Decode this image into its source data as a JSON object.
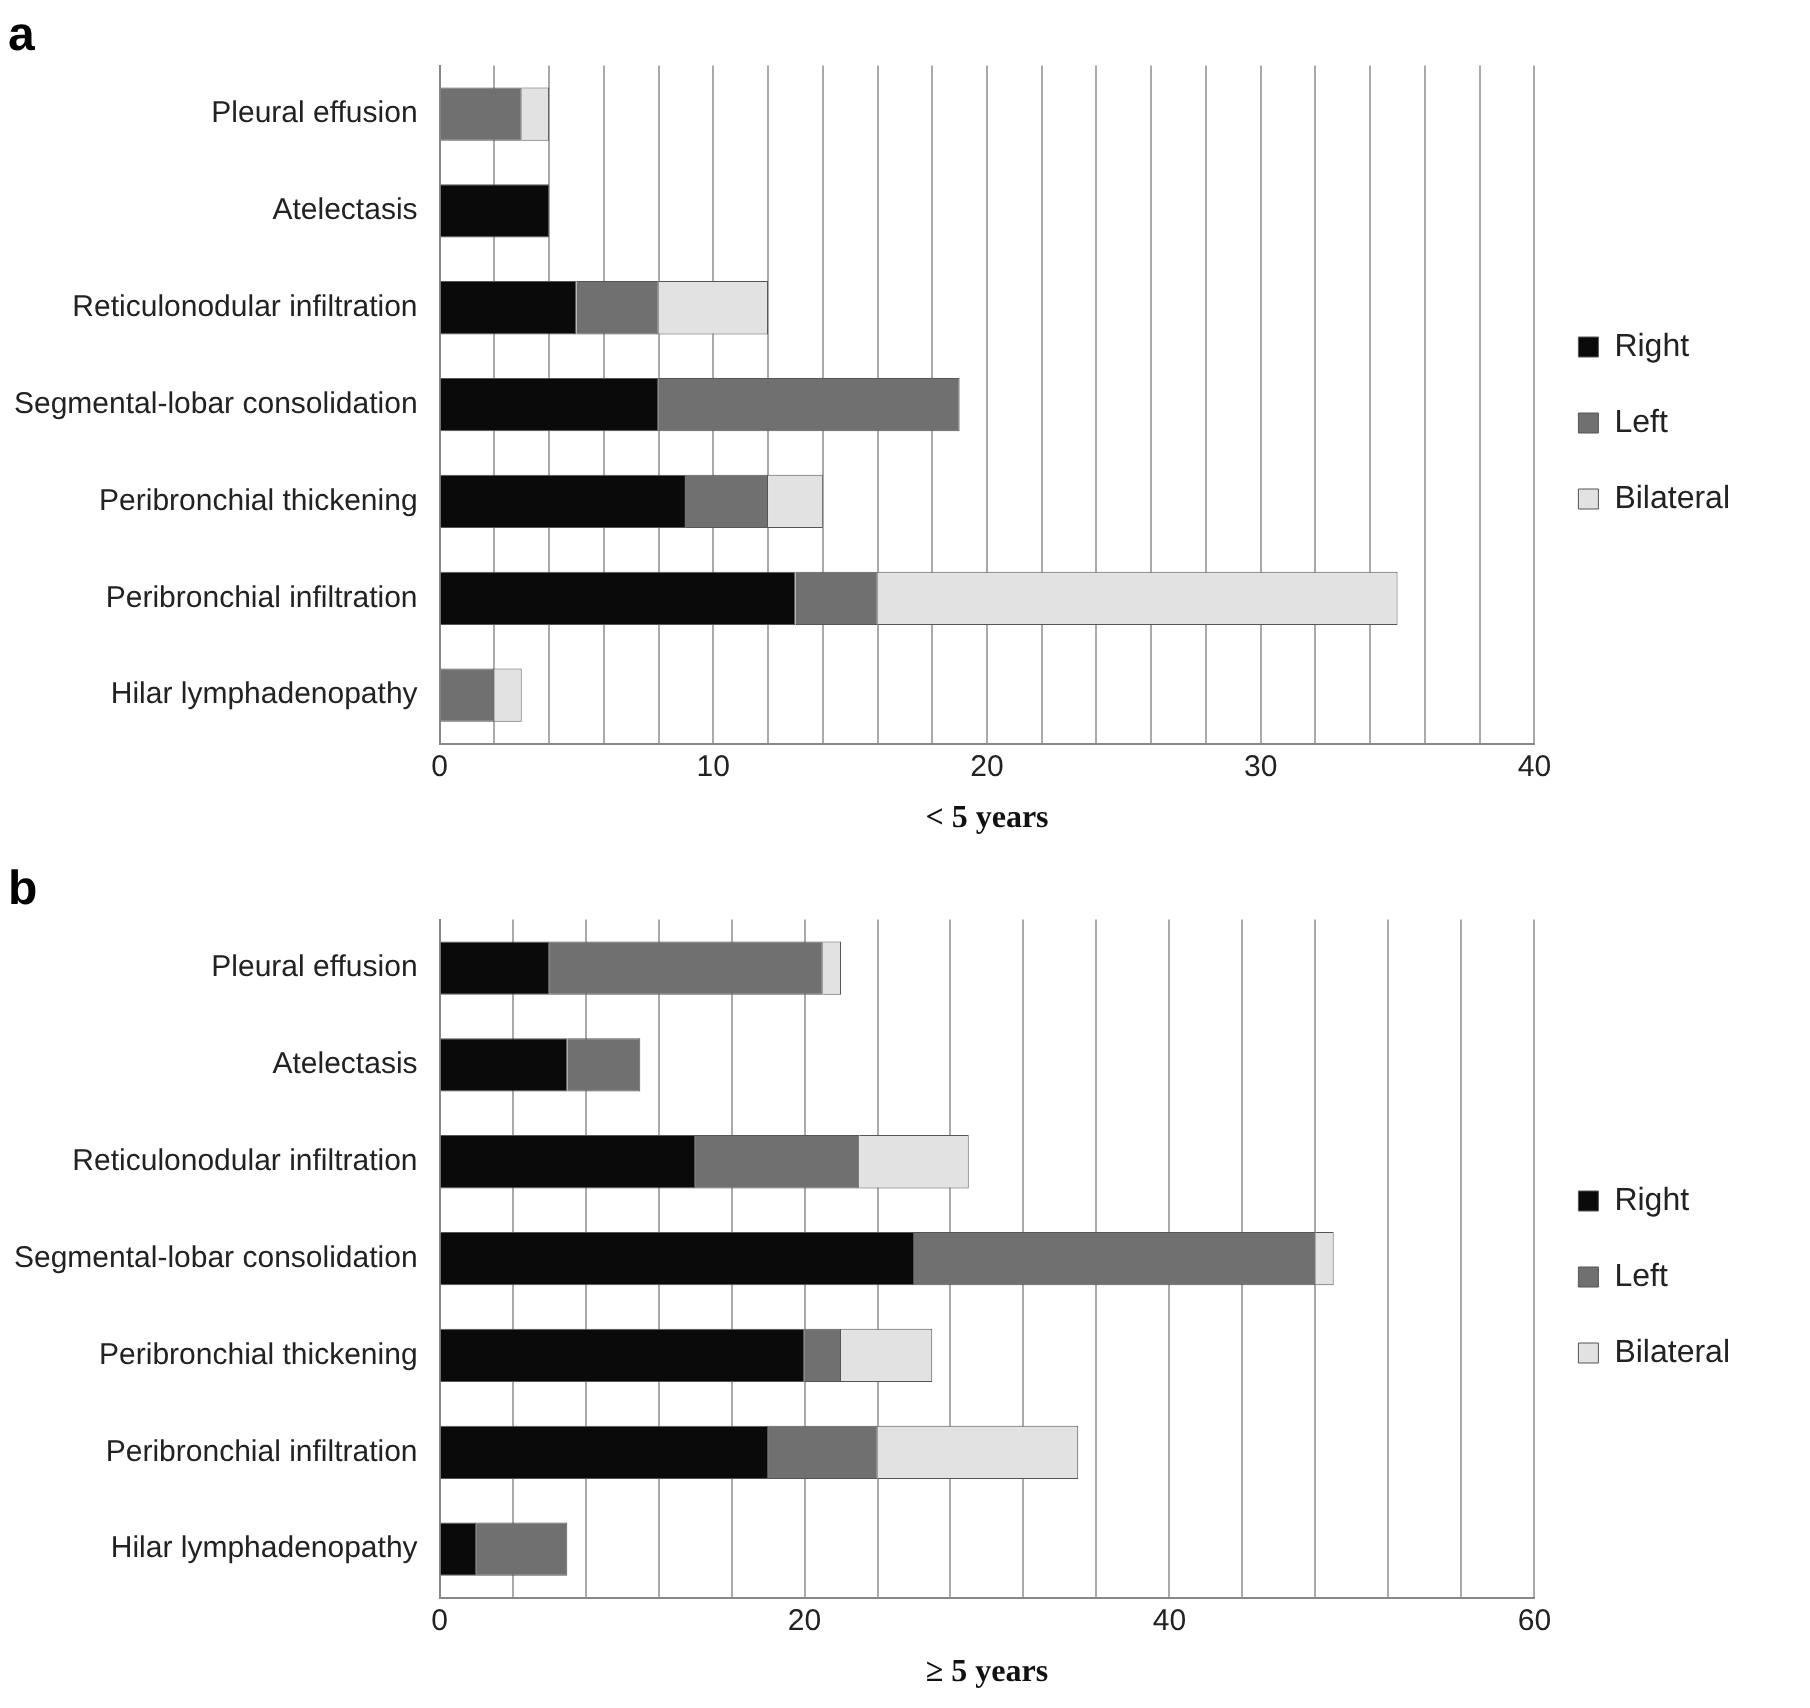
{
  "chart_data": [
    {
      "type": "bar",
      "title": "a",
      "xlabel": "< 5 years",
      "orientation": "horizontal",
      "stacked": true,
      "categories": [
        "Pleural effusion",
        "Atelectasis",
        "Reticulonodular infiltration",
        "Segmental-lobar consolidation",
        "Peribronchial thickening",
        "Peribronchial infiltration",
        "Hilar lymphadenopathy"
      ],
      "series": [
        {
          "name": "Right",
          "color": "#0a0a0a",
          "values": [
            0,
            4,
            5,
            8,
            9,
            13,
            0
          ]
        },
        {
          "name": "Left",
          "color": "#707070",
          "values": [
            3,
            0,
            3,
            11,
            3,
            3,
            2
          ]
        },
        {
          "name": "Bilateral",
          "color": "#e2e2e2",
          "values": [
            1,
            0,
            4,
            0,
            2,
            19,
            1
          ]
        }
      ],
      "xlim": [
        0,
        40
      ],
      "xticks": [
        0,
        {
          "value": 2,
          "label": null
        },
        {
          "value": 4,
          "label": null
        },
        {
          "value": 6,
          "label": null
        },
        {
          "value": 8,
          "label": null
        },
        10,
        {
          "value": 12,
          "label": null
        },
        {
          "value": 14,
          "label": null
        },
        {
          "value": 16,
          "label": null
        },
        {
          "value": 18,
          "label": null
        },
        20,
        {
          "value": 22,
          "label": null
        },
        {
          "value": 24,
          "label": null
        },
        {
          "value": 26,
          "label": null
        },
        {
          "value": 28,
          "label": null
        },
        30,
        {
          "value": 32,
          "label": null
        },
        {
          "value": 34,
          "label": null
        },
        {
          "value": 36,
          "label": null
        },
        {
          "value": 38,
          "label": null
        },
        40
      ],
      "grid": "x",
      "legend": "right"
    },
    {
      "type": "bar",
      "title": "b",
      "xlabel": "≥ 5 years",
      "orientation": "horizontal",
      "stacked": true,
      "categories": [
        "Pleural effusion",
        "Atelectasis",
        "Reticulonodular infiltration",
        "Segmental-lobar consolidation",
        "Peribronchial thickening",
        "Peribronchial infiltration",
        "Hilar lymphadenopathy"
      ],
      "series": [
        {
          "name": "Right",
          "color": "#0a0a0a",
          "values": [
            6,
            7,
            14,
            26,
            20,
            18,
            2
          ]
        },
        {
          "name": "Left",
          "color": "#707070",
          "values": [
            15,
            4,
            9,
            22,
            2,
            6,
            5
          ]
        },
        {
          "name": "Bilateral",
          "color": "#e2e2e2",
          "values": [
            1,
            0,
            6,
            1,
            5,
            11,
            0
          ]
        }
      ],
      "xlim": [
        0,
        60
      ],
      "xticks": [
        0,
        {
          "value": 4,
          "label": null
        },
        {
          "value": 8,
          "label": null
        },
        {
          "value": 12,
          "label": null
        },
        {
          "value": 16,
          "label": null
        },
        20,
        {
          "value": 24,
          "label": null
        },
        {
          "value": 28,
          "label": null
        },
        {
          "value": 32,
          "label": null
        },
        {
          "value": 36,
          "label": null
        },
        40,
        {
          "value": 44,
          "label": null
        },
        {
          "value": 48,
          "label": null
        },
        {
          "value": 52,
          "label": null
        },
        {
          "value": 56,
          "label": null
        },
        60
      ],
      "grid": "x",
      "legend": "right"
    }
  ]
}
